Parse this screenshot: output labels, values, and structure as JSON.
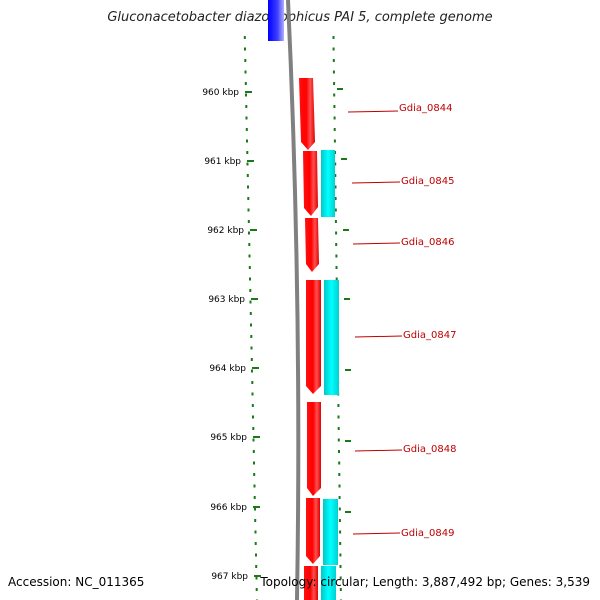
{
  "header": {
    "title": "Gluconacetobacter diazotrophicus PAI 5, complete genome"
  },
  "footer": {
    "accession": "Accession: NC_011365",
    "topology": "Topology: circular; Length: 3,887,492 bp; Genes: 3,539"
  },
  "scale": {
    "ticks": [
      "960 kbp",
      "961 kbp",
      "962 kbp",
      "963 kbp",
      "964 kbp",
      "965 kbp",
      "966 kbp",
      "967 kbp"
    ]
  },
  "genes": [
    {
      "label": "Gdia_0844",
      "strand": "forward"
    },
    {
      "label": "Gdia_0845",
      "strand": "forward"
    },
    {
      "label": "Gdia_0846",
      "strand": "forward"
    },
    {
      "label": "Gdia_0847",
      "strand": "forward"
    },
    {
      "label": "Gdia_0848",
      "strand": "forward"
    },
    {
      "label": "Gdia_0849",
      "strand": "forward"
    }
  ],
  "colors": {
    "gene": "#ff0000",
    "cds_feature": "#00e0e0",
    "backbone": "#808080",
    "ticks": "#1a7a1a",
    "label": "#c00000",
    "upstream_block": "#0000ff"
  }
}
